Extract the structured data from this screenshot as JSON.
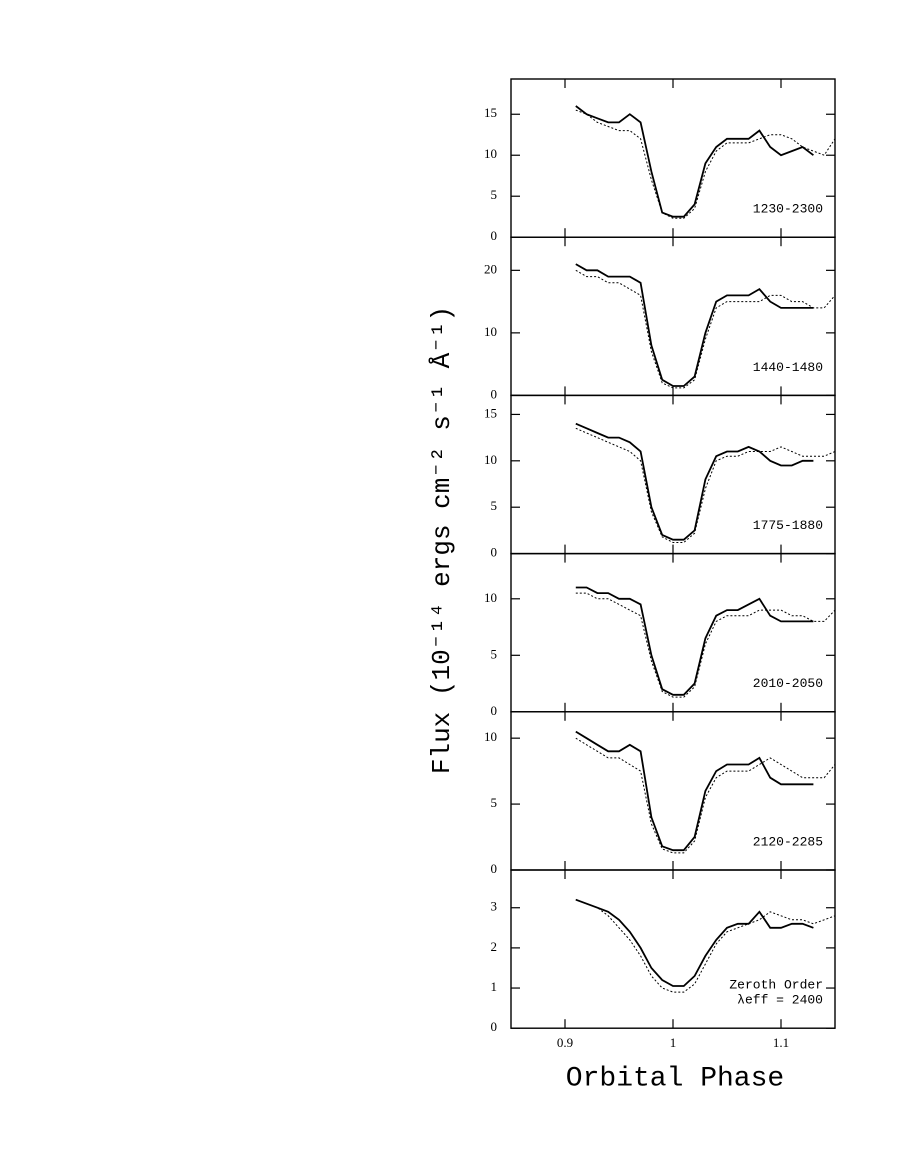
{
  "figure": {
    "xlabel": "Orbital Phase",
    "ylabel": "Flux (10⁻¹⁴ ergs cm⁻² s⁻¹ Å⁻¹)"
  },
  "chart_data": [
    {
      "type": "line",
      "annotations": [
        "1230-2300"
      ],
      "xlim": [
        0.85,
        1.15
      ],
      "xticks": [
        0.9,
        1,
        1.1
      ],
      "ylim": [
        0,
        19.3
      ],
      "yticks": [
        0,
        5,
        10,
        15
      ],
      "x": [
        0.91,
        0.92,
        0.93,
        0.94,
        0.95,
        0.96,
        0.97,
        0.98,
        0.99,
        1.0,
        1.01,
        1.02,
        1.03,
        1.04,
        1.05,
        1.06,
        1.07,
        1.08,
        1.09,
        1.1,
        1.11,
        1.12,
        1.13,
        1.14,
        1.15
      ],
      "series": [
        {
          "color": "#000000",
          "linestyle": "solid",
          "values": [
            16,
            15,
            14.5,
            14,
            14,
            15,
            14,
            8,
            3,
            2.5,
            2.5,
            4,
            9,
            11,
            12,
            12,
            12,
            13,
            11,
            10,
            10.5,
            11,
            10,
            null,
            null
          ]
        },
        {
          "color": "#000000",
          "linestyle": "dotted",
          "values": [
            15.5,
            15,
            14,
            13.5,
            13,
            13,
            12,
            7,
            3,
            2.3,
            2.3,
            3.5,
            8,
            10.5,
            11.5,
            11.5,
            11.5,
            12,
            12.5,
            12.5,
            12,
            11,
            10.5,
            10,
            12
          ]
        }
      ]
    },
    {
      "type": "line",
      "annotations": [
        "1440-1480"
      ],
      "xlim": [
        0.85,
        1.15
      ],
      "xticks": [
        0.9,
        1,
        1.1
      ],
      "ylim": [
        0,
        25.3
      ],
      "yticks": [
        0,
        10,
        20
      ],
      "x": [
        0.91,
        0.92,
        0.93,
        0.94,
        0.95,
        0.96,
        0.97,
        0.98,
        0.99,
        1.0,
        1.01,
        1.02,
        1.03,
        1.04,
        1.05,
        1.06,
        1.07,
        1.08,
        1.09,
        1.1,
        1.11,
        1.12,
        1.13,
        1.14,
        1.15
      ],
      "series": [
        {
          "color": "#000000",
          "linestyle": "solid",
          "values": [
            21,
            20,
            20,
            19,
            19,
            19,
            18,
            8,
            2.5,
            1.5,
            1.5,
            3,
            10,
            15,
            16,
            16,
            16,
            17,
            15,
            14,
            14,
            14,
            14,
            null,
            null
          ]
        },
        {
          "color": "#000000",
          "linestyle": "dotted",
          "values": [
            20,
            19,
            19,
            18,
            18,
            17,
            16,
            7,
            2,
            1.2,
            1.2,
            2.5,
            9,
            14,
            15,
            15,
            15,
            15,
            16,
            16,
            15,
            15,
            14,
            14,
            16
          ]
        }
      ]
    },
    {
      "type": "line",
      "annotations": [
        "1775-1880"
      ],
      "xlim": [
        0.85,
        1.15
      ],
      "xticks": [
        0.9,
        1,
        1.1
      ],
      "ylim": [
        0,
        17.05
      ],
      "yticks": [
        0,
        5,
        10,
        15
      ],
      "x": [
        0.91,
        0.92,
        0.93,
        0.94,
        0.95,
        0.96,
        0.97,
        0.98,
        0.99,
        1.0,
        1.01,
        1.02,
        1.03,
        1.04,
        1.05,
        1.06,
        1.07,
        1.08,
        1.09,
        1.1,
        1.11,
        1.12,
        1.13,
        1.14,
        1.15
      ],
      "series": [
        {
          "color": "#000000",
          "linestyle": "solid",
          "values": [
            14,
            13.5,
            13,
            12.5,
            12.5,
            12,
            11,
            5,
            2,
            1.5,
            1.5,
            2.5,
            8,
            10.5,
            11,
            11,
            11.5,
            11,
            10,
            9.5,
            9.5,
            10,
            10,
            null,
            null
          ]
        },
        {
          "color": "#000000",
          "linestyle": "dotted",
          "values": [
            13.5,
            13,
            12.5,
            12,
            11.5,
            11,
            10,
            4.5,
            1.8,
            1.2,
            1.2,
            2.2,
            7,
            10,
            10.5,
            10.5,
            11,
            11,
            11,
            11.5,
            11,
            10.5,
            10.5,
            10.5,
            11
          ]
        }
      ]
    },
    {
      "type": "line",
      "annotations": [
        "2010-2050"
      ],
      "xlim": [
        0.85,
        1.15
      ],
      "xticks": [
        0.9,
        1,
        1.1
      ],
      "ylim": [
        0,
        14
      ],
      "yticks": [
        0,
        5,
        10
      ],
      "x": [
        0.91,
        0.92,
        0.93,
        0.94,
        0.95,
        0.96,
        0.97,
        0.98,
        0.99,
        1.0,
        1.01,
        1.02,
        1.03,
        1.04,
        1.05,
        1.06,
        1.07,
        1.08,
        1.09,
        1.1,
        1.11,
        1.12,
        1.13,
        1.14,
        1.15
      ],
      "series": [
        {
          "color": "#000000",
          "linestyle": "solid",
          "values": [
            11,
            11,
            10.5,
            10.5,
            10,
            10,
            9.5,
            5,
            2,
            1.5,
            1.5,
            2.5,
            6.5,
            8.5,
            9,
            9,
            9.5,
            10,
            8.5,
            8,
            8,
            8,
            8,
            null,
            null
          ]
        },
        {
          "color": "#000000",
          "linestyle": "dotted",
          "values": [
            10.5,
            10.5,
            10,
            10,
            9.5,
            9,
            8.5,
            4.5,
            1.8,
            1.3,
            1.3,
            2.2,
            6,
            8,
            8.5,
            8.5,
            8.5,
            9,
            9,
            9,
            8.5,
            8.5,
            8,
            8,
            9
          ]
        }
      ]
    },
    {
      "type": "line",
      "annotations": [
        "2120-2285"
      ],
      "xlim": [
        0.85,
        1.15
      ],
      "xticks": [
        0.9,
        1,
        1.1
      ],
      "ylim": [
        0,
        12
      ],
      "yticks": [
        0,
        5,
        10
      ],
      "x": [
        0.91,
        0.92,
        0.93,
        0.94,
        0.95,
        0.96,
        0.97,
        0.98,
        0.99,
        1.0,
        1.01,
        1.02,
        1.03,
        1.04,
        1.05,
        1.06,
        1.07,
        1.08,
        1.09,
        1.1,
        1.11,
        1.12,
        1.13,
        1.14,
        1.15
      ],
      "series": [
        {
          "color": "#000000",
          "linestyle": "solid",
          "values": [
            10.5,
            10,
            9.5,
            9,
            9,
            9.5,
            9,
            4,
            1.8,
            1.5,
            1.5,
            2.5,
            6,
            7.5,
            8,
            8,
            8,
            8.5,
            7,
            6.5,
            6.5,
            6.5,
            6.5,
            null,
            null
          ]
        },
        {
          "color": "#000000",
          "linestyle": "dotted",
          "values": [
            10,
            9.5,
            9,
            8.5,
            8.5,
            8,
            7.5,
            3.5,
            1.6,
            1.3,
            1.3,
            2.2,
            5.5,
            7,
            7.5,
            7.5,
            7.5,
            8,
            8.5,
            8,
            7.5,
            7,
            7,
            7,
            8
          ]
        }
      ]
    },
    {
      "type": "line",
      "annotations": [
        "Zeroth Order",
        "λeff = 2400"
      ],
      "xlim": [
        0.85,
        1.15
      ],
      "xticks": [
        0.9,
        1,
        1.1
      ],
      "ylim": [
        0,
        3.94
      ],
      "yticks": [
        0,
        1,
        2,
        3
      ],
      "x": [
        0.91,
        0.92,
        0.93,
        0.94,
        0.95,
        0.96,
        0.97,
        0.98,
        0.99,
        1.0,
        1.01,
        1.02,
        1.03,
        1.04,
        1.05,
        1.06,
        1.07,
        1.08,
        1.09,
        1.1,
        1.11,
        1.12,
        1.13,
        1.14,
        1.15
      ],
      "series": [
        {
          "color": "#000000",
          "linestyle": "solid",
          "values": [
            3.2,
            3.1,
            3.0,
            2.9,
            2.7,
            2.4,
            2.0,
            1.5,
            1.2,
            1.05,
            1.05,
            1.3,
            1.8,
            2.2,
            2.5,
            2.6,
            2.6,
            2.9,
            2.5,
            2.5,
            2.6,
            2.6,
            2.5,
            null,
            null
          ]
        },
        {
          "color": "#000000",
          "linestyle": "dotted",
          "values": [
            3.2,
            3.1,
            3.0,
            2.8,
            2.5,
            2.2,
            1.8,
            1.3,
            1.0,
            0.9,
            0.9,
            1.1,
            1.6,
            2.1,
            2.4,
            2.5,
            2.6,
            2.7,
            2.9,
            2.8,
            2.7,
            2.7,
            2.6,
            2.7,
            2.8
          ]
        }
      ]
    }
  ]
}
